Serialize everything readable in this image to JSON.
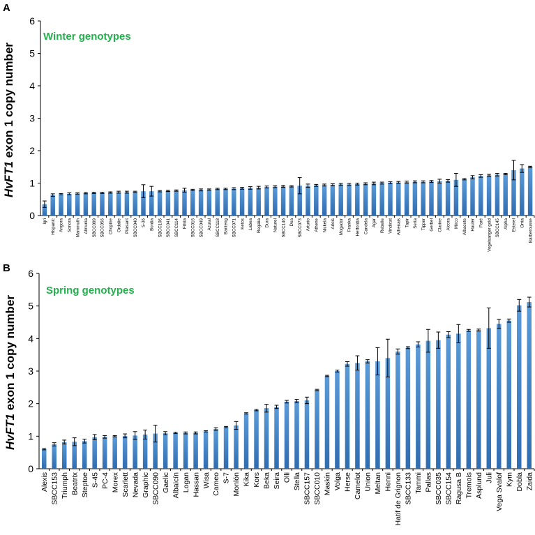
{
  "chart_data": [
    {
      "panel": "A",
      "type": "bar",
      "title": "Winter genotypes",
      "ylabel": "HvFT1 exon 1 copy number",
      "ylabel_italic_part": "HvFT1",
      "ylabel_rest": " exon 1 copy number",
      "ylim": [
        0,
        6
      ],
      "yticks": [
        0,
        1,
        2,
        3,
        4,
        5,
        6
      ],
      "categories": [
        "Igri",
        "Hispanic",
        "Angora",
        "Sonora",
        "Mammuth",
        "Almunia",
        "SBCC099",
        "SBCC056",
        "Chopine",
        "Ordalie",
        "Plaisant",
        "SBCC040",
        "S-36",
        "Bordia",
        "SBCC106",
        "SBCC041",
        "SBCC114",
        "Frisia",
        "SBCC016",
        "SBCC049",
        "Azural",
        "SBCC118",
        "Banteng",
        "SBCC071",
        "Ketos",
        "Labea",
        "Regalia",
        "Dura",
        "Naturel",
        "SBCC146",
        "Dea",
        "SBCC073",
        "Arturio",
        "Athene",
        "Nickela",
        "Arlois",
        "Mogador",
        "Franka",
        "Herfordia",
        "Candela",
        "Agar",
        "Rebelle",
        "Vindicat",
        "Athenais",
        "Tapir",
        "Serta",
        "Tipper",
        "Gerbel",
        "Clarine",
        "Alcora",
        "Mirco",
        "Albacete",
        "Hauter",
        "Paré",
        "Vogelsanger gold",
        "SBCC145",
        "Alpha",
        "Esterel",
        "Orria",
        "Barberousse"
      ],
      "values": [
        0.35,
        0.63,
        0.66,
        0.67,
        0.68,
        0.69,
        0.7,
        0.7,
        0.71,
        0.72,
        0.72,
        0.73,
        0.75,
        0.75,
        0.75,
        0.76,
        0.77,
        0.78,
        0.79,
        0.79,
        0.8,
        0.82,
        0.82,
        0.83,
        0.84,
        0.85,
        0.86,
        0.88,
        0.89,
        0.9,
        0.9,
        0.92,
        0.92,
        0.93,
        0.94,
        0.95,
        0.96,
        0.96,
        0.97,
        0.98,
        0.99,
        1.0,
        1.01,
        1.02,
        1.03,
        1.04,
        1.04,
        1.05,
        1.06,
        1.07,
        1.1,
        1.12,
        1.18,
        1.22,
        1.24,
        1.26,
        1.28,
        1.4,
        1.45,
        1.5
      ],
      "errors": [
        0.1,
        0.04,
        0.02,
        0.03,
        0.02,
        0.02,
        0.02,
        0.02,
        0.02,
        0.03,
        0.03,
        0.02,
        0.2,
        0.15,
        0.02,
        0.02,
        0.02,
        0.06,
        0.02,
        0.03,
        0.02,
        0.02,
        0.02,
        0.03,
        0.03,
        0.04,
        0.04,
        0.03,
        0.03,
        0.03,
        0.02,
        0.25,
        0.05,
        0.03,
        0.03,
        0.03,
        0.03,
        0.03,
        0.03,
        0.03,
        0.04,
        0.03,
        0.03,
        0.03,
        0.03,
        0.03,
        0.03,
        0.03,
        0.06,
        0.04,
        0.2,
        0.02,
        0.05,
        0.04,
        0.03,
        0.04,
        0.02,
        0.3,
        0.12,
        0.02
      ]
    },
    {
      "panel": "B",
      "type": "bar",
      "title": "Spring genotypes",
      "ylabel": "HvFT1 exon 1 copy number",
      "ylabel_italic_part": "HvFT1",
      "ylabel_rest": " exon 1 copy number",
      "ylim": [
        0,
        6
      ],
      "yticks": [
        0,
        1,
        2,
        3,
        4,
        5,
        6
      ],
      "categories": [
        "Alexis",
        "SBCC153",
        "Triumph",
        "Beatrix",
        "Steptoe",
        "S-45",
        "PC-4",
        "Morex",
        "Scarlett",
        "Nevada",
        "Graphic",
        "SBCC090",
        "Gaelic",
        "Albaicín",
        "Logan",
        "Hassan",
        "Wisa",
        "Cameo",
        "S-7",
        "Monlón",
        "Kika",
        "Kors",
        "Beka",
        "Seira",
        "Olli",
        "Stella",
        "SBCC157",
        "SBCC010",
        "Maskin",
        "Volga",
        "Herse",
        "Camelot",
        "Union",
        "Meltan",
        "Henni",
        "Hatif de Grignon",
        "SBCC133",
        "Tammi",
        "Pallas",
        "SBCC035",
        "SBCC154",
        "Ragusa B",
        "Tremois",
        "Asplund",
        "Juli",
        "Vega Svalof",
        "Kym",
        "Dobla",
        "Zaida"
      ],
      "values": [
        0.6,
        0.75,
        0.82,
        0.83,
        0.85,
        0.97,
        0.98,
        1.0,
        1.01,
        1.02,
        1.05,
        1.08,
        1.09,
        1.1,
        1.1,
        1.1,
        1.15,
        1.22,
        1.28,
        1.33,
        1.7,
        1.8,
        1.86,
        1.9,
        2.06,
        2.08,
        2.1,
        2.42,
        2.85,
        3.0,
        3.22,
        3.25,
        3.3,
        3.3,
        3.4,
        3.6,
        3.72,
        3.82,
        3.93,
        3.95,
        4.12,
        4.15,
        4.25,
        4.26,
        4.32,
        4.45,
        4.55,
        5.02,
        5.12
      ],
      "errors": [
        0.02,
        0.05,
        0.06,
        0.12,
        0.06,
        0.08,
        0.04,
        0.02,
        0.06,
        0.12,
        0.14,
        0.26,
        0.05,
        0.02,
        0.03,
        0.03,
        0.02,
        0.04,
        0.02,
        0.12,
        0.02,
        0.02,
        0.12,
        0.05,
        0.04,
        0.05,
        0.1,
        0.02,
        0.02,
        0.03,
        0.07,
        0.22,
        0.05,
        0.42,
        0.58,
        0.08,
        0.03,
        0.08,
        0.35,
        0.25,
        0.09,
        0.28,
        0.03,
        0.03,
        0.62,
        0.14,
        0.05,
        0.18,
        0.15
      ]
    }
  ]
}
